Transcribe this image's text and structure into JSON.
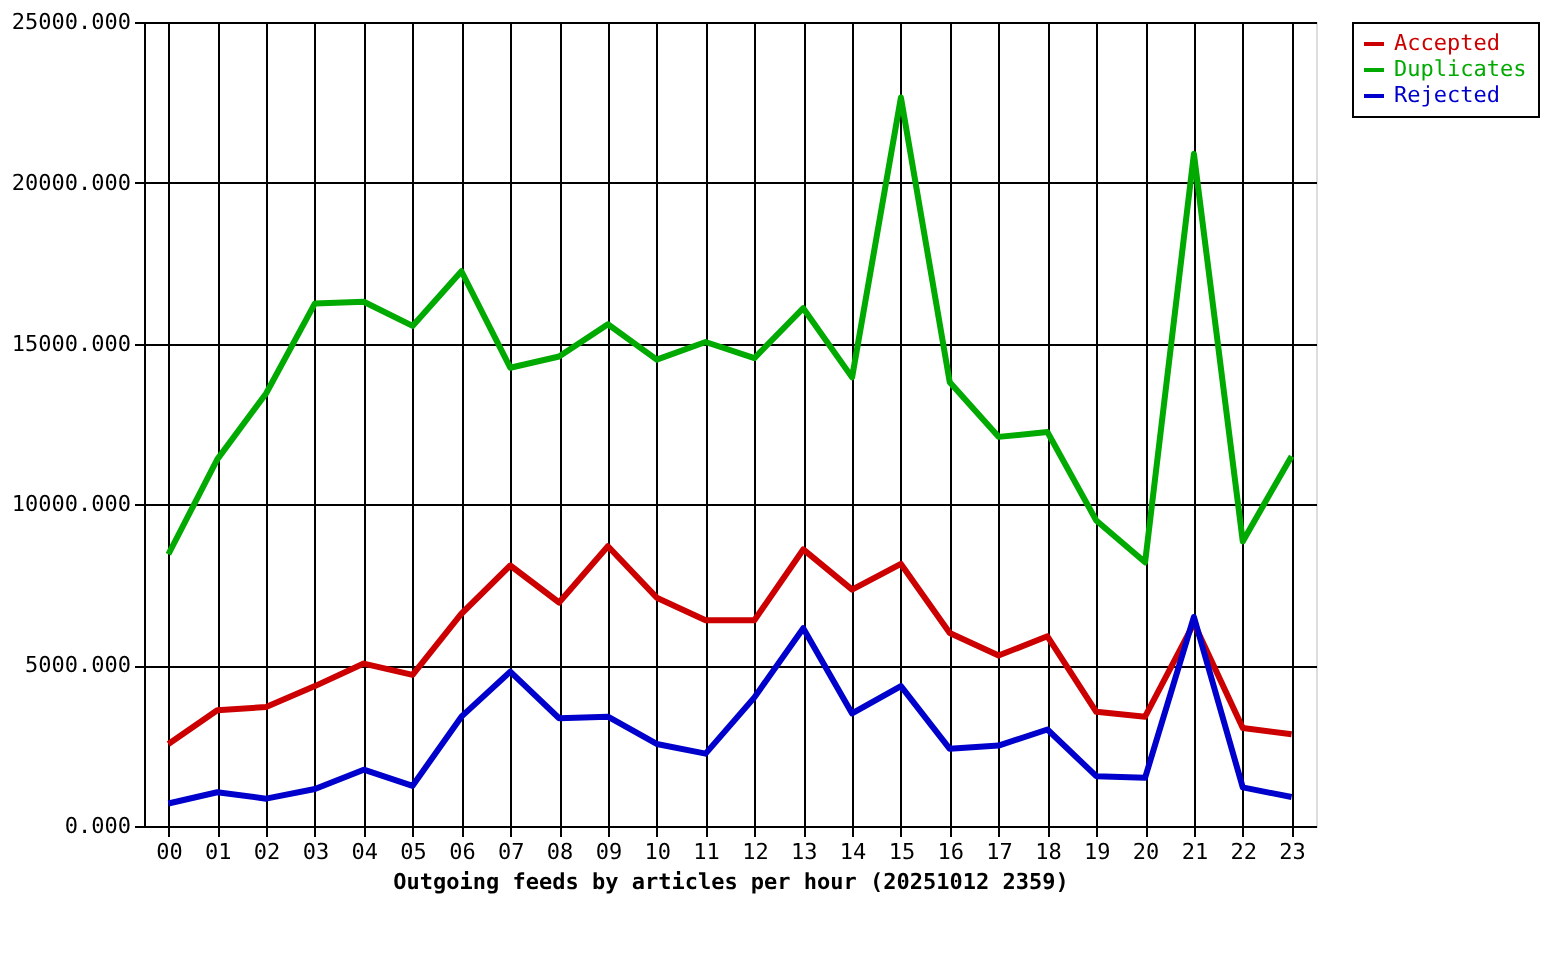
{
  "chart_data": {
    "type": "line",
    "xlabel": "Outgoing feeds by articles per hour (20251012 2359)",
    "categories": [
      "00",
      "01",
      "02",
      "03",
      "04",
      "05",
      "06",
      "07",
      "08",
      "09",
      "10",
      "11",
      "12",
      "13",
      "14",
      "15",
      "16",
      "17",
      "18",
      "19",
      "20",
      "21",
      "22",
      "23"
    ],
    "series": [
      {
        "name": "Accepted",
        "color": "#cc0000",
        "values": [
          2550,
          3600,
          3700,
          4350,
          5050,
          4700,
          6600,
          8100,
          6950,
          8700,
          7100,
          6400,
          6400,
          8600,
          7350,
          8150,
          6000,
          5300,
          5900,
          3550,
          3400,
          6300,
          3050,
          2850
        ]
      },
      {
        "name": "Duplicates",
        "color": "#00aa00",
        "values": [
          8450,
          11400,
          13450,
          16250,
          16300,
          15550,
          17250,
          14250,
          14600,
          15600,
          14500,
          15050,
          14550,
          16100,
          13950,
          22650,
          13800,
          12100,
          12250,
          9500,
          8200,
          20900,
          8850,
          11500
        ]
      },
      {
        "name": "Rejected",
        "color": "#0000cc",
        "values": [
          700,
          1050,
          850,
          1150,
          1750,
          1250,
          3400,
          4800,
          3350,
          3400,
          2550,
          2250,
          4000,
          6150,
          3500,
          4350,
          2400,
          2500,
          3000,
          1550,
          1500,
          6500,
          1200,
          900
        ]
      }
    ],
    "ylim": [
      0,
      25000
    ],
    "yticks": [
      {
        "value": 0,
        "label": "0.000"
      },
      {
        "value": 5000,
        "label": "5000.000"
      },
      {
        "value": 10000,
        "label": "10000.000"
      },
      {
        "value": 15000,
        "label": "15000.000"
      },
      {
        "value": 20000,
        "label": "20000.000"
      },
      {
        "value": 25000,
        "label": "25000.000"
      }
    ],
    "grid": true,
    "legend": "top right",
    "marker": "none",
    "line_style": "solid"
  }
}
